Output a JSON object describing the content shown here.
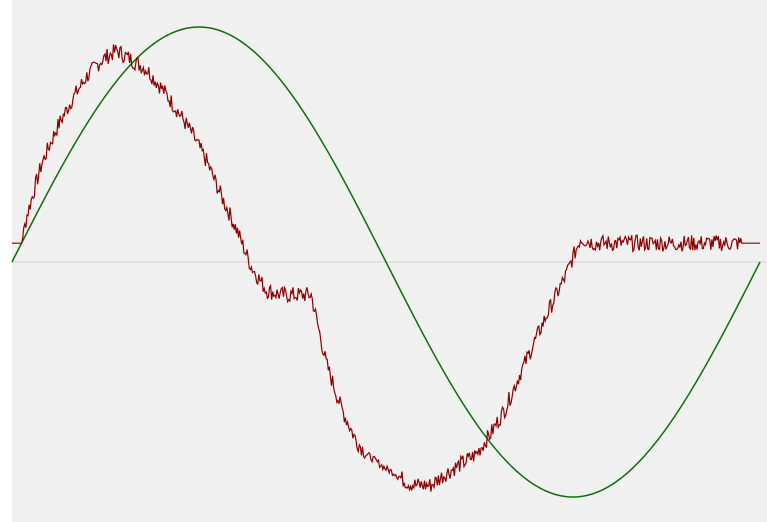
{
  "chart_data": {
    "type": "line",
    "title": "",
    "xlabel": "",
    "ylabel": "",
    "xlim": [
      0,
      1
    ],
    "ylim": [
      -1.1,
      1.1
    ],
    "grid": false,
    "legend": "none",
    "colors": {
      "background": "#f0f0f0",
      "zero_line": "#d0d0d0",
      "reference": "#0a6e0a",
      "measured": "#8b0000"
    },
    "series": [
      {
        "key": "reference",
        "color": "#0a6e0a",
        "x": [
          0,
          0.05,
          0.1,
          0.15,
          0.2,
          0.25,
          0.3,
          0.35,
          0.4,
          0.45,
          0.5,
          0.55,
          0.6,
          0.65,
          0.7,
          0.75,
          0.8,
          0.85,
          0.9,
          0.95,
          1.0
        ],
        "y": [
          0,
          0.31,
          0.59,
          0.81,
          0.95,
          1.0,
          0.95,
          0.81,
          0.59,
          0.31,
          0,
          -0.31,
          -0.59,
          -0.81,
          -0.95,
          -1.0,
          -0.95,
          -0.81,
          -0.59,
          -0.31,
          0
        ]
      },
      {
        "key": "measured",
        "color": "#8b0000",
        "x": [
          0,
          0.013,
          0.02,
          0.04,
          0.06,
          0.08,
          0.1,
          0.12,
          0.14,
          0.16,
          0.18,
          0.2,
          0.22,
          0.24,
          0.26,
          0.28,
          0.3,
          0.32,
          0.34,
          0.36,
          0.38,
          0.4,
          0.42,
          0.44,
          0.46,
          0.475,
          0.5,
          0.513,
          0.52,
          0.53,
          0.54,
          0.56,
          0.58,
          0.6,
          0.62,
          0.64,
          0.66,
          0.68,
          0.7,
          0.72,
          0.74,
          0.76,
          0.78,
          0.8,
          0.82,
          0.84,
          0.86,
          0.88,
          0.9,
          0.92,
          0.94,
          0.96,
          0.98,
          1.0
        ],
        "y": [
          0.08,
          0.08,
          0.2,
          0.42,
          0.57,
          0.69,
          0.79,
          0.86,
          0.9,
          0.86,
          0.82,
          0.74,
          0.65,
          0.55,
          0.43,
          0.28,
          0.14,
          -0.02,
          -0.12,
          -0.14,
          -0.14,
          -0.14,
          -0.43,
          -0.62,
          -0.76,
          -0.82,
          -0.88,
          -0.9,
          -0.92,
          -0.94,
          -0.95,
          -0.95,
          -0.9,
          -0.86,
          -0.82,
          -0.73,
          -0.62,
          -0.47,
          -0.33,
          -0.19,
          -0.06,
          0.1,
          0.08,
          0.08,
          0.08,
          0.08,
          0.08,
          0.08,
          0.08,
          0.08,
          0.08,
          0.08,
          0.08,
          0.08
        ]
      }
    ]
  }
}
